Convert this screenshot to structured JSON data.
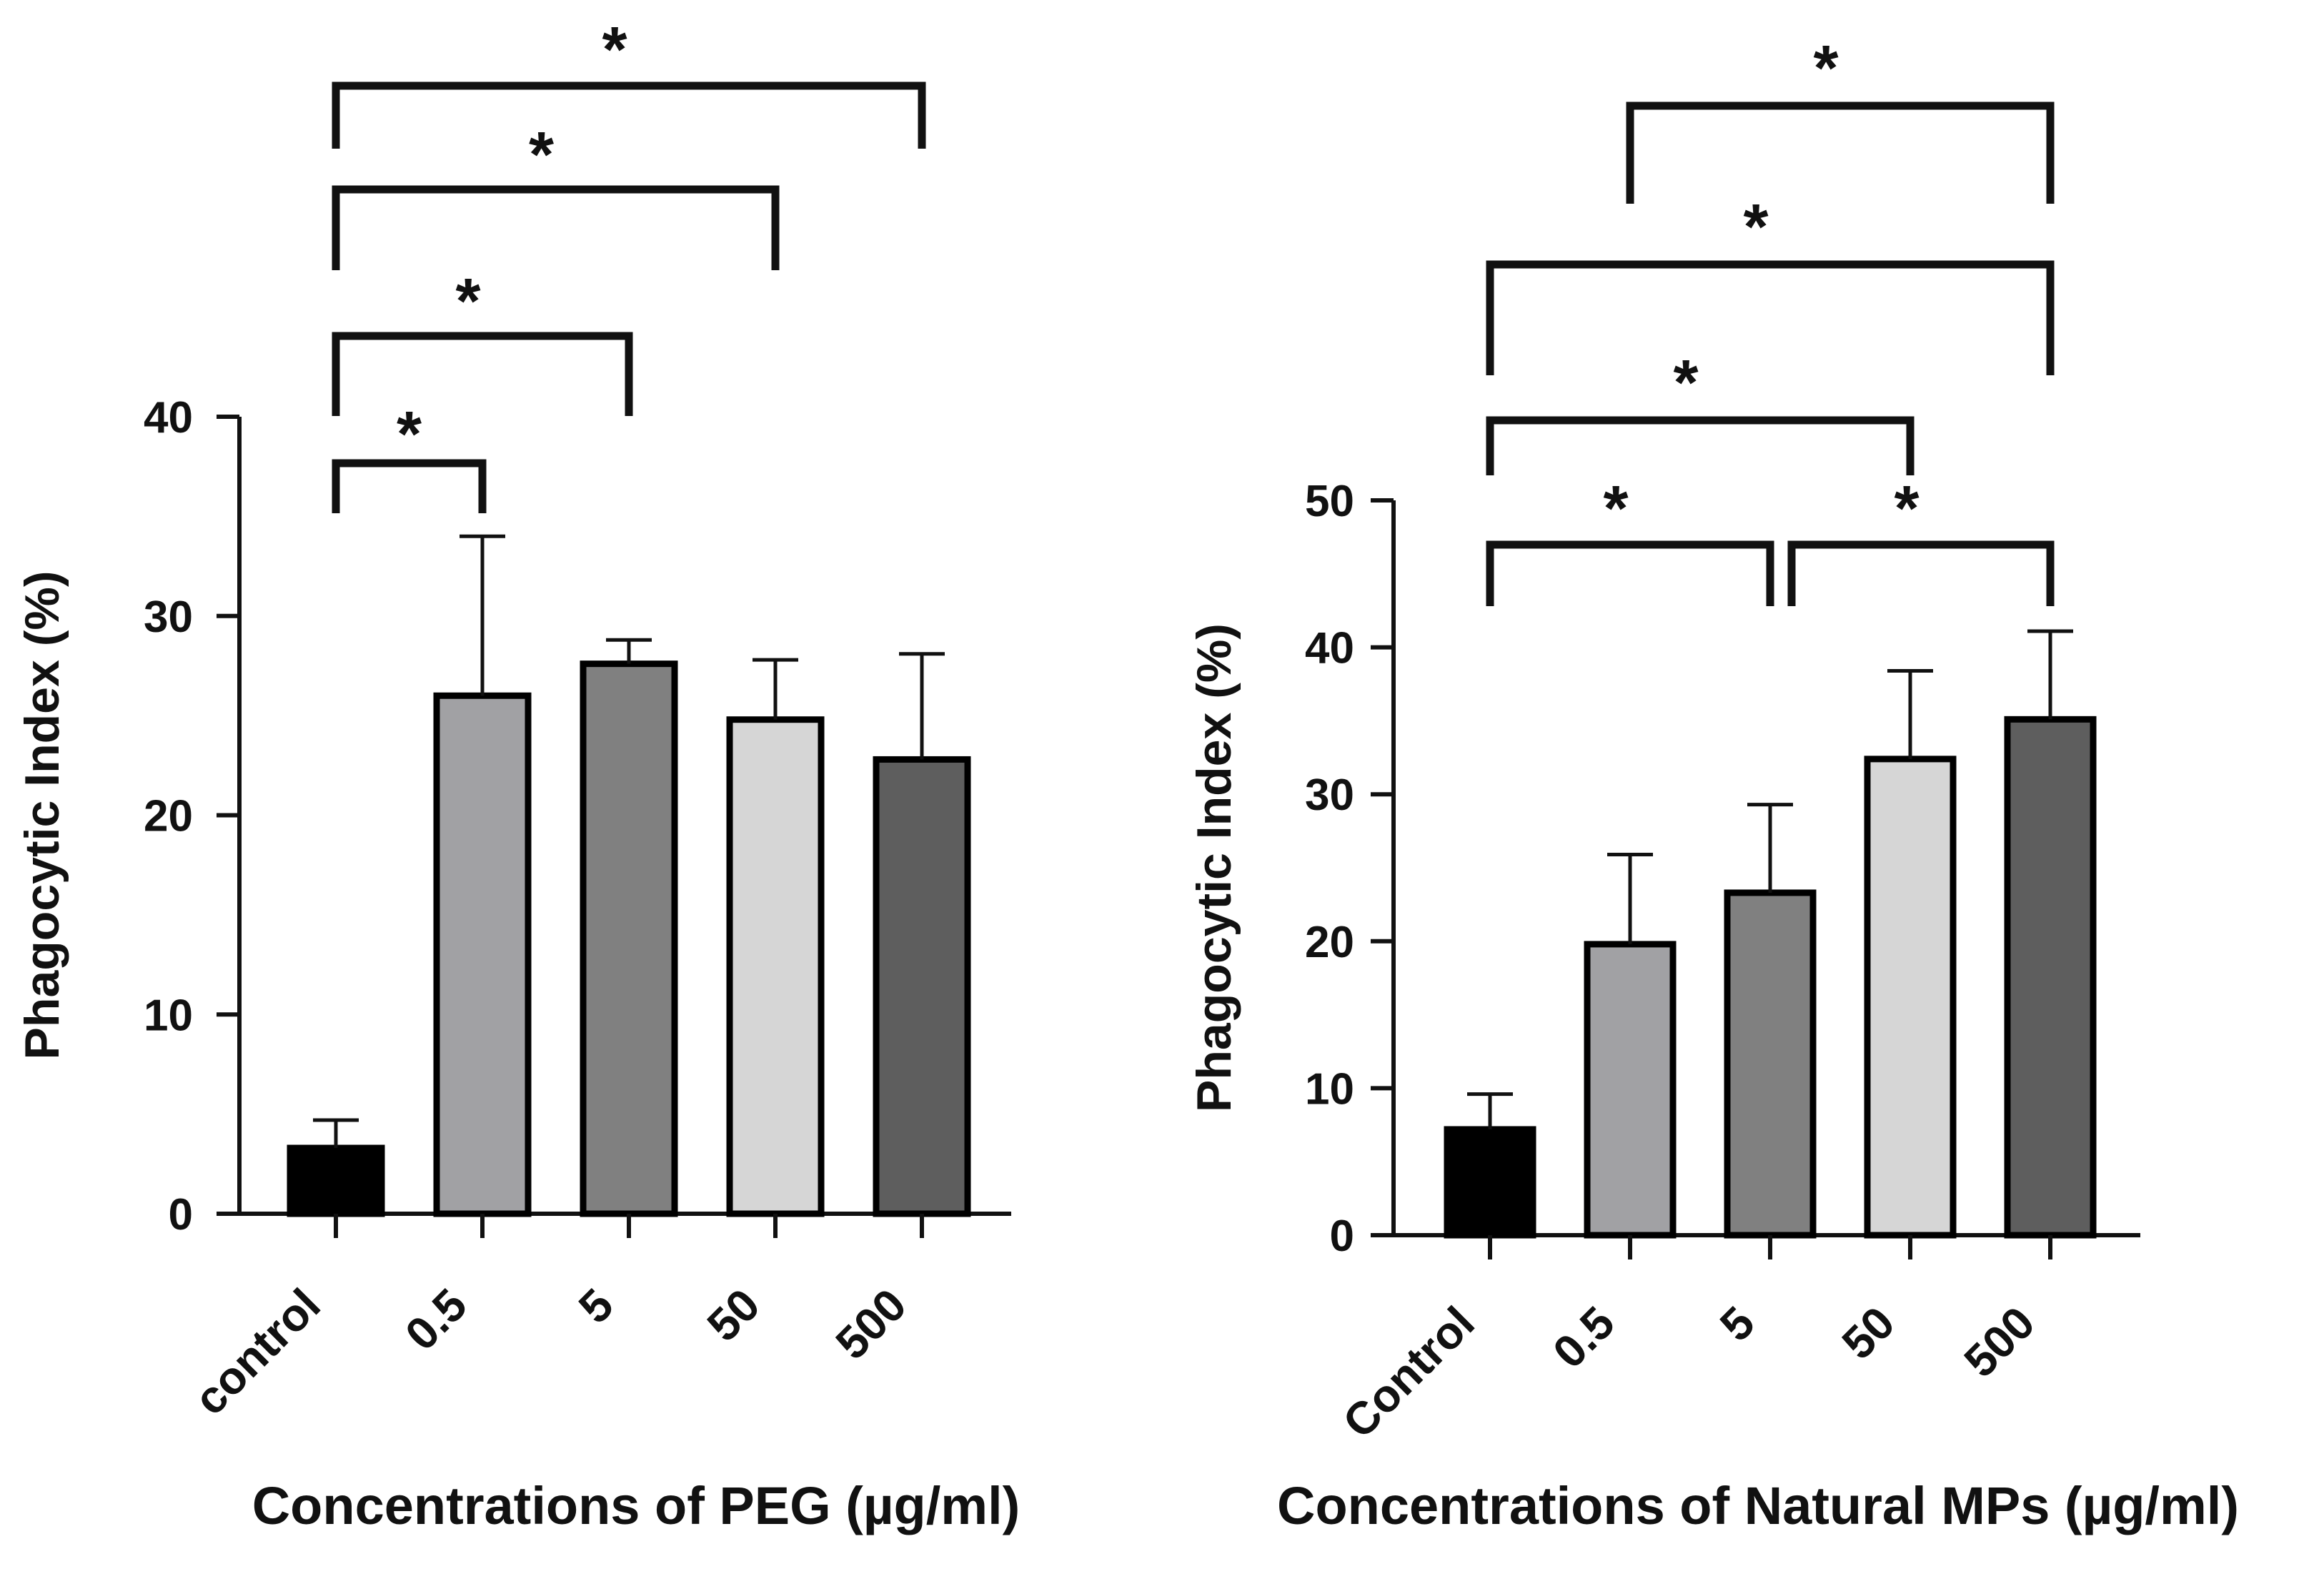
{
  "colors": {
    "axis": "#111111",
    "bar_stroke": "#000000",
    "bar_fills": [
      "#000000",
      "#a1a1a4",
      "#808080",
      "#d6d6d6",
      "#5e5e5e"
    ]
  },
  "chart_data": [
    {
      "type": "bar",
      "title": "",
      "xlabel": "Concentrations of PEG (µg/ml)",
      "ylabel": "Phagocytic Index (%)",
      "categories": [
        "control",
        "0.5",
        "5",
        "50",
        "500"
      ],
      "values": [
        3.3,
        26.0,
        27.6,
        24.8,
        22.8
      ],
      "error": [
        1.4,
        8.0,
        1.2,
        3.0,
        5.3
      ],
      "ylim": [
        0,
        40
      ],
      "yticks": [
        0,
        10,
        20,
        30,
        40
      ],
      "significance": [
        {
          "from": 0,
          "to": 1,
          "label": "*"
        },
        {
          "from": 0,
          "to": 2,
          "label": "*"
        },
        {
          "from": 0,
          "to": 3,
          "label": "*"
        },
        {
          "from": 0,
          "to": 4,
          "label": "*"
        }
      ]
    },
    {
      "type": "bar",
      "title": "",
      "xlabel": "Concentrations of Natural MPs (µg/ml)",
      "ylabel": "Phagocytic Index (%)",
      "categories": [
        "Control",
        "0.5",
        "5",
        "50",
        "500"
      ],
      "values": [
        7.2,
        19.8,
        23.3,
        32.4,
        35.1
      ],
      "error": [
        2.4,
        6.1,
        6.0,
        6.0,
        6.0
      ],
      "ylim": [
        0,
        50
      ],
      "yticks": [
        0,
        10,
        20,
        30,
        40,
        50
      ],
      "significance": [
        {
          "from": 0,
          "to": 2,
          "label": "*"
        },
        {
          "from": 2,
          "to": 4,
          "label": "*"
        },
        {
          "from": 0,
          "to": 3,
          "label": "*"
        },
        {
          "from": 0,
          "to": 4,
          "label": "*"
        },
        {
          "from": 1,
          "to": 4,
          "label": "*"
        }
      ]
    }
  ]
}
